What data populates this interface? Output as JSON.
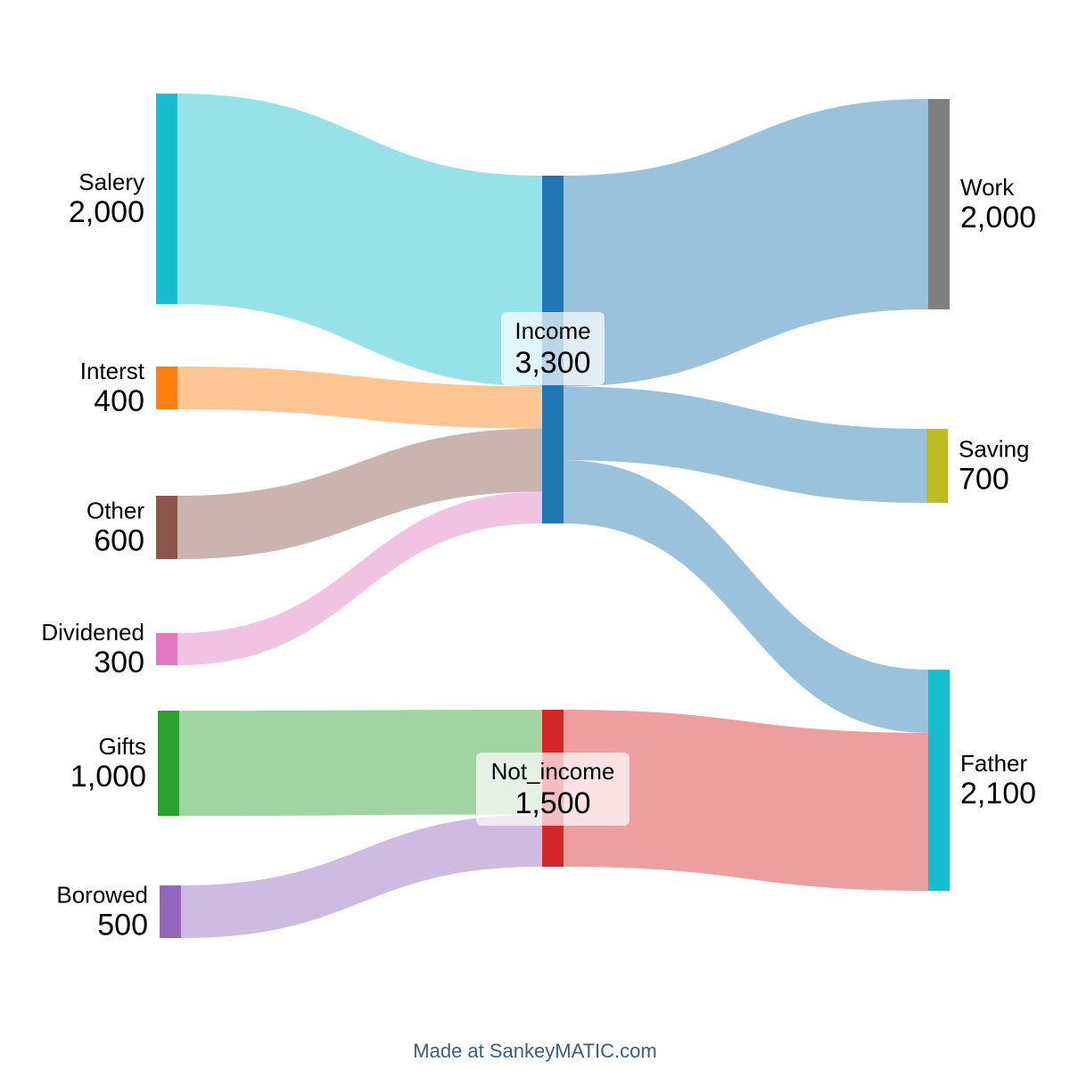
{
  "nodes": [
    {
      "id": "salery",
      "name": "Salery",
      "value": "2,000",
      "color": "#17becf"
    },
    {
      "id": "interst",
      "name": "Interst",
      "value": "400",
      "color": "#ff7f0e"
    },
    {
      "id": "other",
      "name": "Other",
      "value": "600",
      "color": "#8c564b"
    },
    {
      "id": "dividened",
      "name": "Dividened",
      "value": "300",
      "color": "#e377c2"
    },
    {
      "id": "gifts",
      "name": "Gifts",
      "value": "1,000",
      "color": "#2ca02c"
    },
    {
      "id": "borowed",
      "name": "Borowed",
      "value": "500",
      "color": "#9467bd"
    },
    {
      "id": "income",
      "name": "Income",
      "value": "3,300",
      "color": "#1f77b4"
    },
    {
      "id": "not-income",
      "name": "Not_income",
      "value": "1,500",
      "color": "#d62728"
    },
    {
      "id": "work",
      "name": "Work",
      "value": "2,000",
      "color": "#7f7f7f"
    },
    {
      "id": "saving",
      "name": "Saving",
      "value": "700",
      "color": "#bcbd22"
    },
    {
      "id": "father",
      "name": "Father",
      "value": "2,100",
      "color": "#17becf"
    }
  ],
  "flows": [
    {
      "from": "Salery",
      "to": "Income",
      "amount": 2000
    },
    {
      "from": "Interst",
      "to": "Income",
      "amount": 400
    },
    {
      "from": "Other",
      "to": "Income",
      "amount": 600
    },
    {
      "from": "Dividened",
      "to": "Income",
      "amount": 300
    },
    {
      "from": "Gifts",
      "to": "Not_income",
      "amount": 1000
    },
    {
      "from": "Borowed",
      "to": "Not_income",
      "amount": 500
    },
    {
      "from": "Income",
      "to": "Work",
      "amount": 2000
    },
    {
      "from": "Income",
      "to": "Saving",
      "amount": 700
    },
    {
      "from": "Income",
      "to": "Father",
      "amount": 600
    },
    {
      "from": "Not_income",
      "to": "Father",
      "amount": 1500
    }
  ],
  "credit": "Made at SankeyMATIC.com"
}
